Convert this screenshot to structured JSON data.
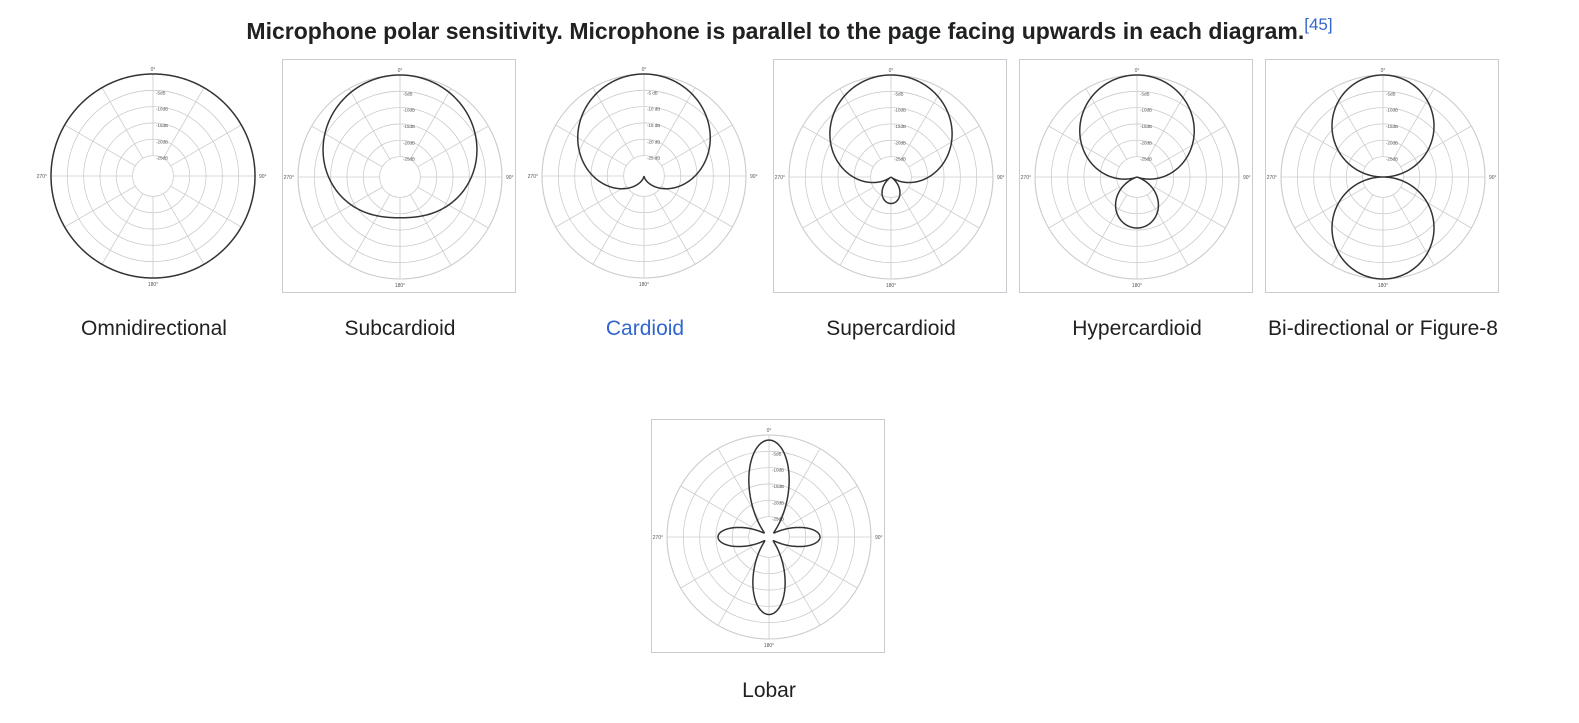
{
  "caption": {
    "text": "Microphone polar sensitivity. Microphone is parallel to the page facing upwards in each diagram.",
    "ref": "[45]"
  },
  "diagram_defaults": {
    "angle_labels": [
      "0°",
      "90°",
      "180°",
      "270°"
    ],
    "db_labels": [
      "-5dB",
      "-10dB",
      "-15dB",
      "-20dB",
      "-25dB"
    ]
  },
  "diagrams": [
    {
      "id": "omnidirectional",
      "label": "Omnidirectional",
      "pattern": "omni",
      "framed": false,
      "is_link": false
    },
    {
      "id": "subcardioid",
      "label": "Subcardioid",
      "pattern": "subcardioid",
      "framed": true,
      "is_link": false
    },
    {
      "id": "cardioid",
      "label": "Cardioid",
      "pattern": "cardioid",
      "framed": false,
      "is_link": true,
      "db_labels": [
        "-5 dB",
        "-10 dB",
        "-15 dB",
        "-20 dB",
        "-25 dB"
      ]
    },
    {
      "id": "supercardioid",
      "label": "Supercardioid",
      "pattern": "supercardioid",
      "framed": true,
      "is_link": false
    },
    {
      "id": "hypercardioid",
      "label": "Hypercardioid",
      "pattern": "hypercardioid",
      "framed": true,
      "is_link": false
    },
    {
      "id": "bidirectional",
      "label": "Bi-directional or Figure-8",
      "pattern": "figure8",
      "framed": true,
      "is_link": false
    },
    {
      "id": "lobar",
      "label": "Lobar",
      "pattern": "lobar",
      "framed": true,
      "is_link": false
    }
  ],
  "colors": {
    "link": "#3366cc",
    "text": "#202122",
    "grid": "#cccccc",
    "curve": "#333333",
    "frame": "#c8ccd1"
  }
}
